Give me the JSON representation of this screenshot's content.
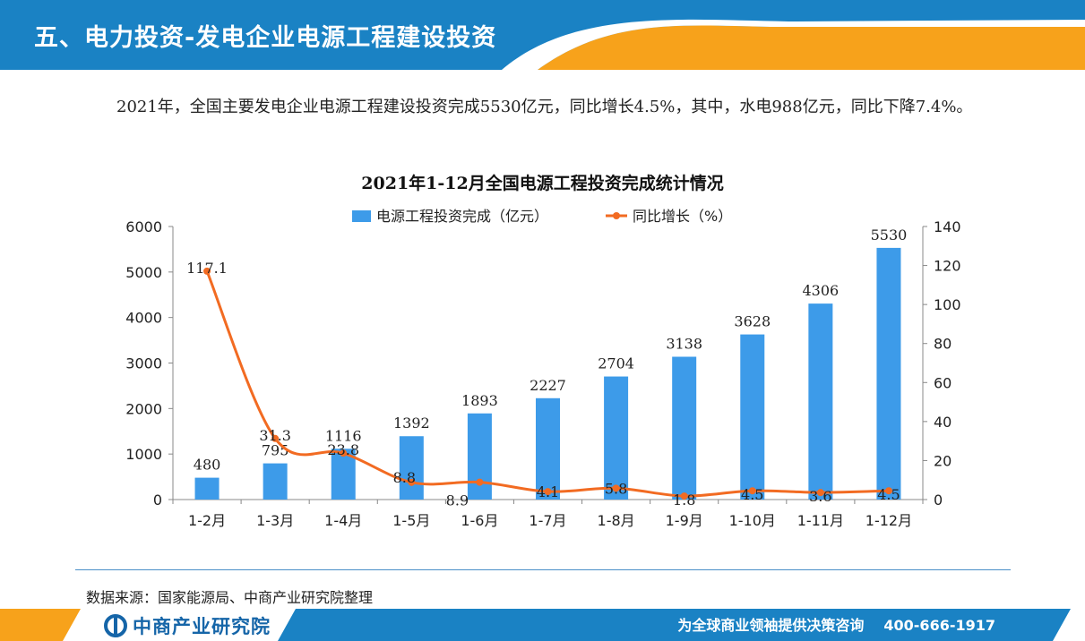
{
  "header": {
    "title": "五、电力投资-发电企业电源工程建设投资"
  },
  "intro": {
    "text": "2021年，全国主要发电企业电源工程建设投资完成5530亿元，同比增长4.5%，其中，水电988亿元，同比下降7.4%。"
  },
  "chart_data": {
    "type": "bar+line",
    "title": "2021年1-12月全国电源工程投资完成统计情况",
    "categories": [
      "1-2月",
      "1-3月",
      "1-4月",
      "1-5月",
      "1-6月",
      "1-7月",
      "1-8月",
      "1-9月",
      "1-10月",
      "1-11月",
      "1-12月"
    ],
    "series": [
      {
        "name": "电源工程投资完成（亿元）",
        "type": "bar",
        "axis": "left",
        "color": "#3d9be9",
        "values": [
          480,
          795,
          1116,
          1392,
          1893,
          2227,
          2704,
          3138,
          3628,
          4306,
          5530
        ],
        "labels": [
          "480",
          "795",
          "1116",
          "1392",
          "1893",
          "2227",
          "2704",
          "3138",
          "3628",
          "4306",
          "5530"
        ]
      },
      {
        "name": "同比增长（%）",
        "type": "line",
        "axis": "right",
        "color": "#f26b22",
        "values": [
          117.1,
          31.3,
          23.8,
          8.8,
          8.9,
          4.1,
          5.8,
          1.8,
          4.5,
          3.6,
          4.5
        ],
        "labels": [
          "117.1",
          "31.3",
          "23.8",
          "8.8",
          "8.9",
          "4.1",
          "5.8",
          "1.8",
          "4.5",
          "3.6",
          "4.5"
        ]
      }
    ],
    "y_left": {
      "min": 0,
      "max": 6000,
      "ticks": [
        "0",
        "1000",
        "2000",
        "3000",
        "4000",
        "5000",
        "6000"
      ]
    },
    "y_right": {
      "min": 0,
      "max": 140,
      "ticks": [
        "0",
        "20",
        "40",
        "60",
        "80",
        "100",
        "120",
        "140"
      ]
    },
    "legend": "top-center",
    "grid": false
  },
  "source": {
    "text": "数据来源：国家能源局、中商产业研究院整理"
  },
  "footer": {
    "logo_text": "中商产业研究院",
    "slogan": "为全球商业领袖提供决策咨询",
    "phone": "400-666-1917"
  },
  "colors": {
    "header_blue": "#1a82c4",
    "accent_orange": "#f7a21b",
    "bar_blue": "#3d9be9",
    "line_orange": "#f26b22"
  }
}
